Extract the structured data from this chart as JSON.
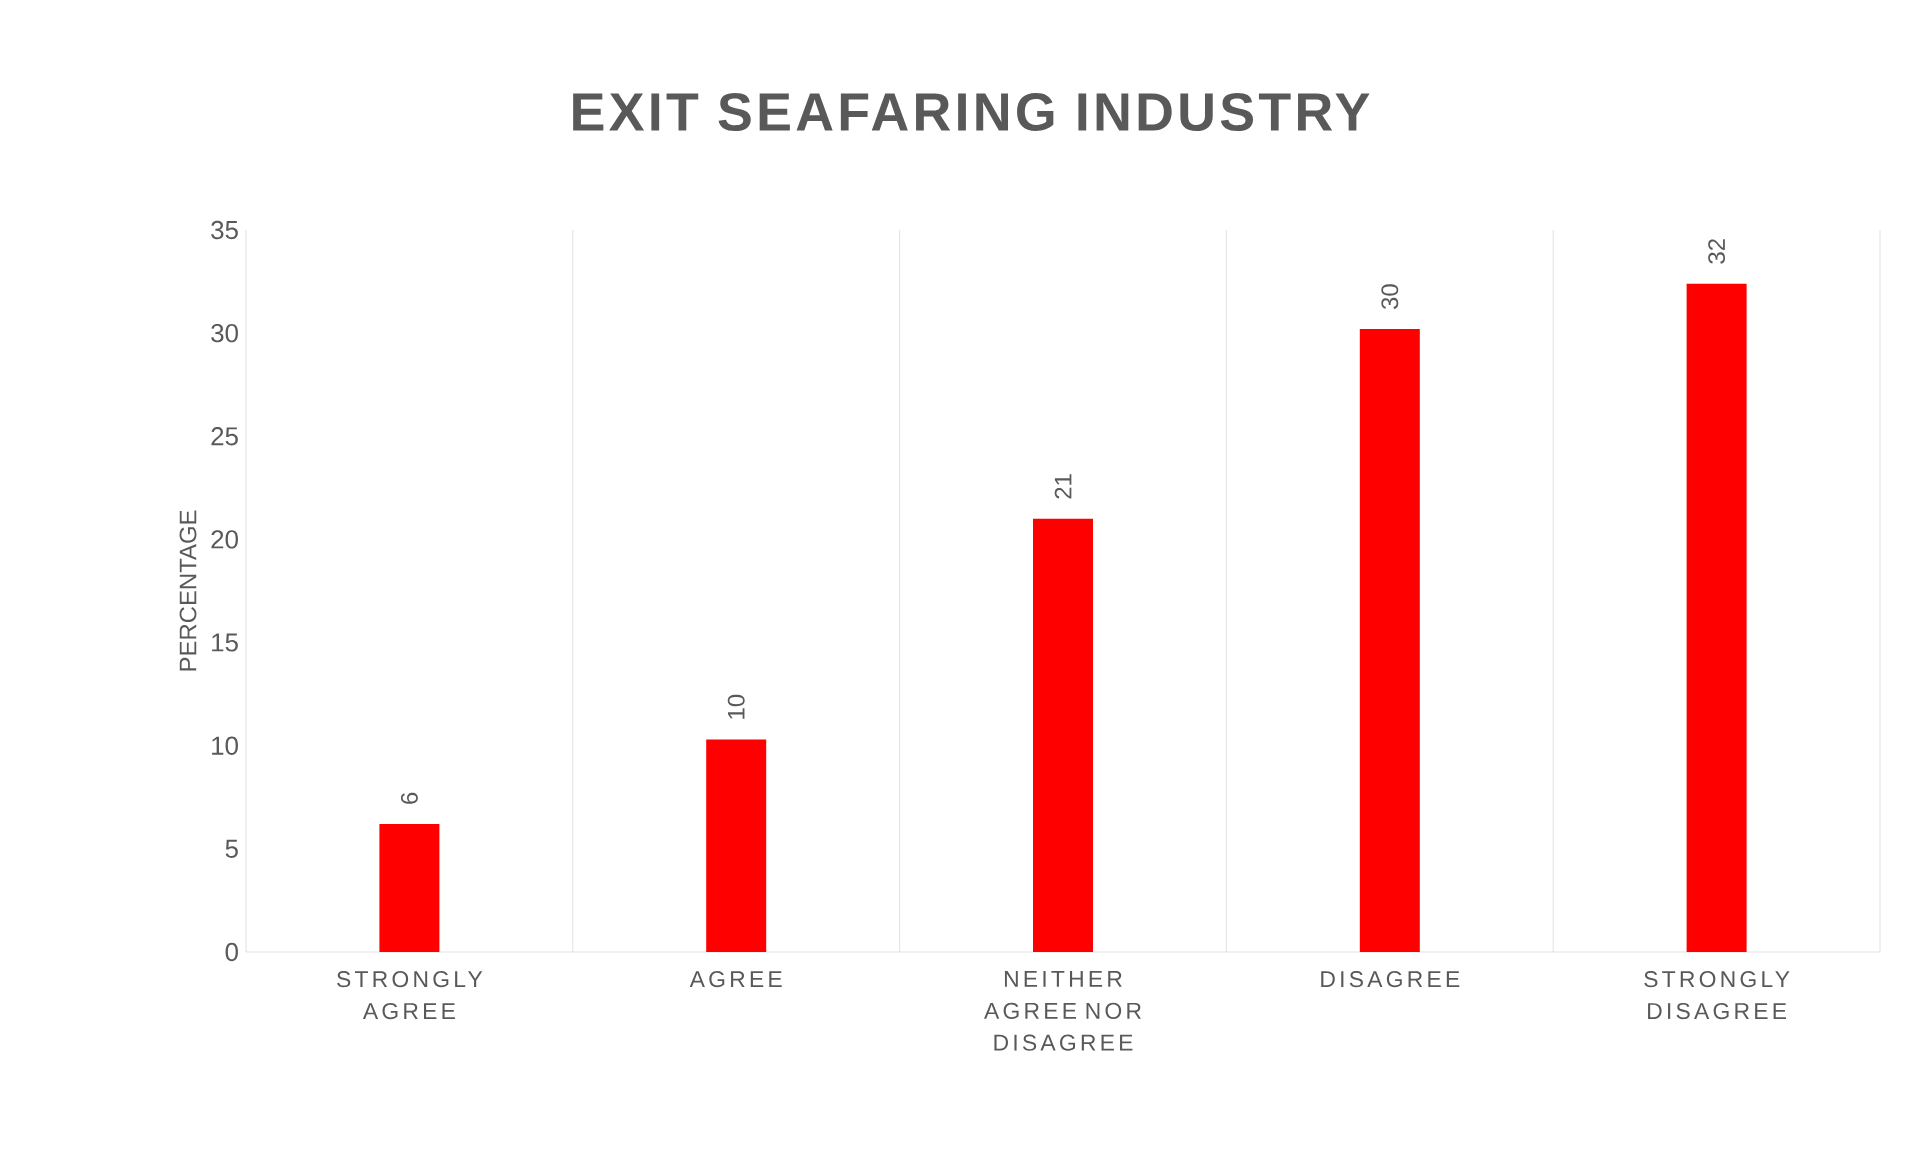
{
  "chart_data": {
    "type": "bar",
    "title": "EXIT SEAFARING INDUSTRY",
    "ylabel": "PERCENTAGE",
    "categories": [
      "STRONGLY AGREE",
      "AGREE",
      "NEITHER AGREE NOR DISAGREE",
      "DISAGREE",
      "STRONGLY DISAGREE"
    ],
    "values": [
      6.2,
      10.3,
      21.0,
      30.2,
      32.4
    ],
    "value_labels": [
      "6",
      "10",
      "21",
      "30",
      "32"
    ],
    "color": "#ff0000",
    "ylim": [
      0,
      35
    ],
    "yticks": [
      0,
      5,
      10,
      15,
      20,
      25,
      30,
      35
    ],
    "grid": "x"
  }
}
